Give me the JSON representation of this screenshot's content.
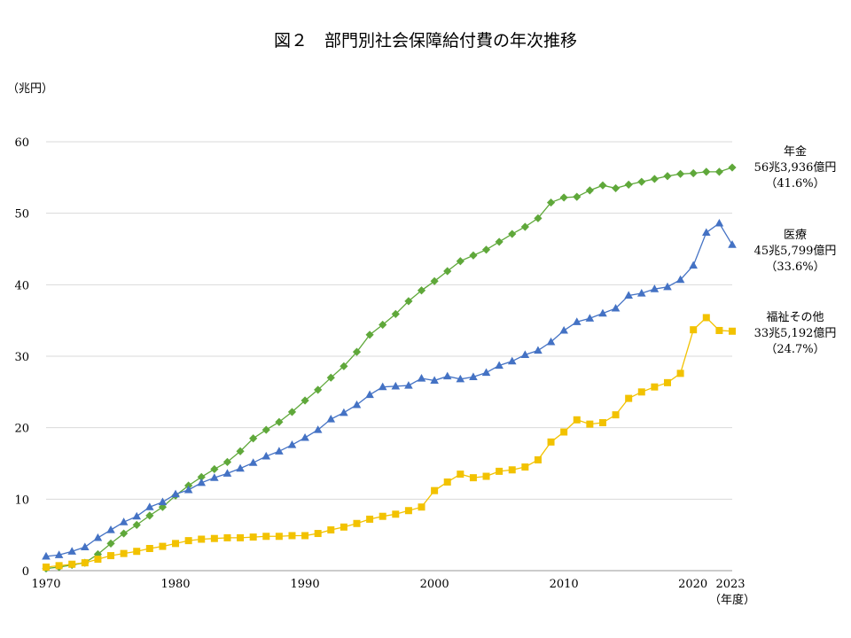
{
  "chart_data": {
    "type": "line",
    "title": "図２　部門別社会保障給付費の年次推移",
    "ylabel": "（兆円）",
    "xlabel": "（年度）",
    "ylim": [
      0,
      60
    ],
    "yticks": [
      0,
      10,
      20,
      30,
      40,
      50,
      60
    ],
    "xticks": [
      1970,
      1980,
      1990,
      2000,
      2010,
      2020,
      2023
    ],
    "grid": true,
    "x": [
      1970,
      1971,
      1972,
      1973,
      1974,
      1975,
      1976,
      1977,
      1978,
      1979,
      1980,
      1981,
      1982,
      1983,
      1984,
      1985,
      1986,
      1987,
      1988,
      1989,
      1990,
      1991,
      1992,
      1993,
      1994,
      1995,
      1996,
      1997,
      1998,
      1999,
      2000,
      2001,
      2002,
      2003,
      2004,
      2005,
      2006,
      2007,
      2008,
      2009,
      2010,
      2011,
      2012,
      2013,
      2014,
      2015,
      2016,
      2017,
      2018,
      2019,
      2020,
      2021,
      2022,
      2023
    ],
    "series": [
      {
        "key": "pension",
        "color": "#5fa83a",
        "marker": "diamond",
        "annotation": [
          "年金",
          "56兆3,936億円",
          "（41.6%）"
        ],
        "values": [
          0.3,
          0.5,
          0.8,
          1.1,
          2.3,
          3.8,
          5.2,
          6.4,
          7.7,
          8.9,
          10.5,
          11.9,
          13.1,
          14.2,
          15.2,
          16.7,
          18.5,
          19.7,
          20.8,
          22.2,
          23.8,
          25.3,
          27.0,
          28.6,
          30.6,
          33.0,
          34.4,
          35.9,
          37.7,
          39.2,
          40.5,
          41.9,
          43.3,
          44.1,
          44.9,
          46.0,
          47.1,
          48.1,
          49.3,
          51.5,
          52.2,
          52.3,
          53.2,
          53.9,
          53.5,
          54.0,
          54.4,
          54.8,
          55.2,
          55.5,
          55.6,
          55.8,
          55.8,
          56.4
        ]
      },
      {
        "key": "medical",
        "color": "#4472c4",
        "marker": "triangle",
        "annotation": [
          "医療",
          "45兆5,799億円",
          "（33.6%）"
        ],
        "values": [
          2.0,
          2.2,
          2.7,
          3.3,
          4.6,
          5.7,
          6.8,
          7.6,
          8.9,
          9.6,
          10.7,
          11.3,
          12.3,
          13.0,
          13.6,
          14.3,
          15.1,
          16.0,
          16.7,
          17.6,
          18.6,
          19.7,
          21.2,
          22.1,
          23.2,
          24.6,
          25.7,
          25.8,
          25.9,
          26.9,
          26.6,
          27.2,
          26.8,
          27.1,
          27.7,
          28.7,
          29.3,
          30.2,
          30.8,
          32.0,
          33.6,
          34.8,
          35.3,
          36.0,
          36.7,
          38.5,
          38.8,
          39.4,
          39.7,
          40.7,
          42.7,
          47.3,
          48.6,
          45.6
        ]
      },
      {
        "key": "welfare",
        "color": "#f2c200",
        "marker": "square",
        "annotation": [
          "福祉その他",
          "33兆5,192億円",
          "（24.7%）"
        ],
        "values": [
          0.5,
          0.7,
          0.9,
          1.1,
          1.6,
          2.1,
          2.4,
          2.7,
          3.1,
          3.4,
          3.8,
          4.2,
          4.4,
          4.5,
          4.6,
          4.6,
          4.7,
          4.8,
          4.8,
          4.9,
          4.9,
          5.2,
          5.7,
          6.1,
          6.6,
          7.2,
          7.6,
          7.9,
          8.4,
          8.9,
          11.2,
          12.4,
          13.5,
          13.0,
          13.2,
          13.9,
          14.1,
          14.5,
          15.5,
          18.0,
          19.4,
          21.1,
          20.5,
          20.7,
          21.8,
          24.1,
          25.0,
          25.7,
          26.3,
          27.6,
          33.7,
          35.4,
          33.6,
          33.5
        ]
      }
    ]
  }
}
